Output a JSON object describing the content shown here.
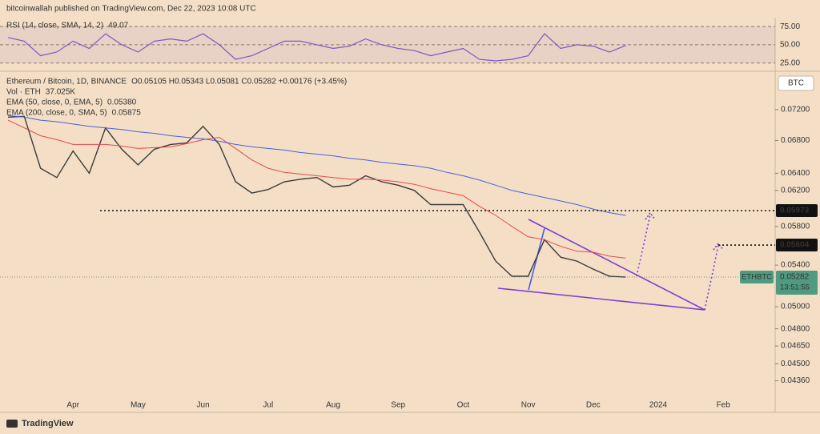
{
  "header": {
    "text": "bitcoinwallah published on TradingView.com, Dec 22, 2023 10:08 UTC"
  },
  "footer": {
    "brand": "TradingView"
  },
  "chart_data": [
    {
      "type": "line",
      "title": "RSI (14, close, SMA, 14, 2)",
      "color": "#7e57c2",
      "ylim": [
        17,
        85
      ],
      "yticks": [
        {
          "value": 75,
          "label": "75.00"
        },
        {
          "value": 50,
          "label": "50.00"
        },
        {
          "value": 25,
          "label": "25.00"
        }
      ],
      "values": [
        60,
        55,
        35,
        40,
        55,
        45,
        65,
        50,
        40,
        55,
        58,
        55,
        65,
        50,
        30,
        35,
        45,
        55,
        55,
        50,
        45,
        48,
        58,
        50,
        45,
        42,
        35,
        40,
        45,
        30,
        28,
        30,
        35,
        65,
        45,
        50,
        48,
        40,
        49.07,
        null,
        null,
        null,
        null,
        null,
        null
      ]
    },
    {
      "type": "line",
      "title": "Ethereum / Bitcoin, 1D, BINANCE",
      "ohlc": "O0.05105 H0.05343 L0.05081 C0.05282 +0.00176 (+3.45%)",
      "volume": {
        "label": "Vol · ETH",
        "value": "37.025K"
      },
      "currency": "BTC",
      "symbol": "ETHBTC",
      "countdown": "13:51:55",
      "log_scale": true,
      "ylim": [
        0.0423,
        0.0766
      ],
      "yticks": [
        {
          "value": 0.072,
          "label": "0.07200"
        },
        {
          "value": 0.068,
          "label": "0.06800"
        },
        {
          "value": 0.064,
          "label": "0.06400"
        },
        {
          "value": 0.062,
          "label": "0.06200"
        },
        {
          "value": 0.058,
          "label": "0.05800"
        },
        {
          "value": 0.054,
          "label": "0.05400"
        },
        {
          "value": 0.05,
          "label": "0.05000"
        },
        {
          "value": 0.048,
          "label": "0.04800"
        },
        {
          "value": 0.0465,
          "label": "0.04650"
        },
        {
          "value": 0.045,
          "label": "0.04500"
        },
        {
          "value": 0.0436,
          "label": "0.04360"
        }
      ],
      "annotations": [
        {
          "value": 0.05973,
          "label": "0.05973"
        },
        {
          "value": 0.05604,
          "label": "0.05604"
        }
      ],
      "categories": [
        null,
        null,
        null,
        null,
        "Apr",
        null,
        null,
        null,
        "May",
        null,
        null,
        null,
        "Jun",
        null,
        null,
        null,
        "Jul",
        null,
        null,
        null,
        "Aug",
        null,
        null,
        null,
        "Sep",
        null,
        null,
        null,
        "Oct",
        null,
        null,
        null,
        "Nov",
        null,
        null,
        null,
        "Dec",
        null,
        null,
        null,
        "2024",
        null,
        null,
        null,
        "Feb"
      ],
      "series": [
        {
          "name": "Ethereum / Bitcoin, 1D, BINANCE",
          "color": "#3b3b3b",
          "values": [
            0.071,
            0.0711,
            0.0646,
            0.0635,
            0.0667,
            0.064,
            0.0696,
            0.0669,
            0.065,
            0.0669,
            0.0675,
            0.0677,
            0.0698,
            0.0675,
            0.063,
            0.0617,
            0.0621,
            0.063,
            0.0633,
            0.0635,
            0.0624,
            0.0626,
            0.0637,
            0.063,
            0.0626,
            0.062,
            0.0604,
            0.0604,
            0.0604,
            0.0574,
            0.0544,
            0.0529,
            0.0529,
            0.0566,
            0.0548,
            0.0544,
            0.0536,
            0.0529,
            0.05282,
            null,
            null,
            null,
            null,
            null,
            null
          ]
        },
        {
          "name": "EMA (50, close, 0, EMA, 5)",
          "legend_value": "0.05380",
          "color": "#e5484d",
          "values": [
            0.0706,
            0.0696,
            0.0686,
            0.0681,
            0.0675,
            0.0675,
            0.0675,
            0.0673,
            0.067,
            0.0671,
            0.0672,
            0.0676,
            0.0681,
            0.0684,
            0.067,
            0.0656,
            0.0646,
            0.0641,
            0.0639,
            0.0637,
            0.0635,
            0.0633,
            0.0633,
            0.0632,
            0.063,
            0.0627,
            0.0622,
            0.0618,
            0.0614,
            0.0602,
            0.0592,
            0.058,
            0.0569,
            0.0566,
            0.0559,
            0.0554,
            0.0553,
            0.0549,
            0.0547,
            null,
            null,
            null,
            null,
            null,
            null
          ]
        },
        {
          "name": "EMA (200, close, 0, SMA, 5)",
          "legend_value": "0.05875",
          "color": "#4a5ee0",
          "values": [
            0.0712,
            0.071,
            0.0706,
            0.0704,
            0.0701,
            0.0698,
            0.0696,
            0.0694,
            0.0691,
            0.0689,
            0.0686,
            0.0684,
            0.0682,
            0.0679,
            0.0675,
            0.0672,
            0.067,
            0.0668,
            0.0665,
            0.0663,
            0.0661,
            0.0658,
            0.0656,
            0.0653,
            0.0651,
            0.0649,
            0.0646,
            0.0641,
            0.0637,
            0.0632,
            0.0626,
            0.062,
            0.0616,
            0.0612,
            0.0608,
            0.0604,
            0.0599,
            0.0595,
            0.0592,
            null,
            null,
            null,
            null,
            null,
            null
          ]
        }
      ]
    }
  ]
}
